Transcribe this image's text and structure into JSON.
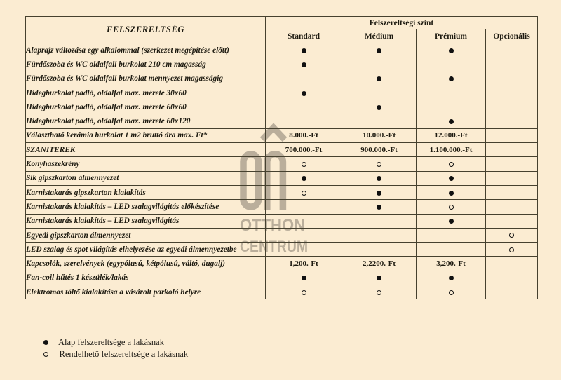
{
  "page": {
    "background_color": "#fbecd2",
    "border_color": "#46412f",
    "text_color": "#1d1a10",
    "watermark_color": "#5f594e"
  },
  "table": {
    "header": {
      "col1": "FELSZERELTSÉG",
      "group": "Felszereltségi szint",
      "levels": [
        "Standard",
        "Médium",
        "Prémium",
        "Opcionális"
      ]
    },
    "rows": [
      {
        "label": "Alaprajz változása egy alkalommal (szerkezet megépítése előtt)",
        "cells": [
          "filled",
          "filled",
          "filled",
          ""
        ]
      },
      {
        "label": "Fürdőszoba és WC oldalfali burkolat 210 cm magasság",
        "cells": [
          "filled",
          "",
          "",
          ""
        ]
      },
      {
        "label": "Fürdőszoba és WC oldalfali burkolat mennyezet magasságig",
        "cells": [
          "",
          "filled",
          "filled",
          ""
        ]
      },
      {
        "label": "Hidegburkolat padló, oldalfal max. mérete 30x60",
        "cells": [
          "filled",
          "",
          "",
          ""
        ]
      },
      {
        "label": "Hidegburkolat padló, oldalfal max. mérete 60x60",
        "cells": [
          "",
          "filled",
          "",
          ""
        ]
      },
      {
        "label": "Hidegburkolat padló, oldalfal max. mérete 60x120",
        "cells": [
          "",
          "",
          "filled",
          ""
        ]
      },
      {
        "label": "Választható kerámia burkolat 1 m2 bruttó ára max. Ft*",
        "cells": [
          "8.000.-Ft",
          "10.000.-Ft",
          "12.000.-Ft",
          ""
        ]
      },
      {
        "label": "SZANITEREK",
        "cells": [
          "700.000.-Ft",
          "900.000.-Ft",
          "1.100.000.-Ft",
          ""
        ]
      },
      {
        "label": "Konyhaszekrény",
        "cells": [
          "open",
          "open",
          "open",
          ""
        ]
      },
      {
        "label": "Sík gipszkarton álmennyezet",
        "cells": [
          "filled",
          "filled",
          "filled",
          ""
        ]
      },
      {
        "label": "Karnistakarás gipszkarton kialakítás",
        "cells": [
          "open",
          "filled",
          "filled",
          ""
        ]
      },
      {
        "label": "Karnistakarás kialakítás – LED szalagvilágítás előkészítése",
        "cells": [
          "",
          "filled",
          "open",
          ""
        ]
      },
      {
        "label": "Karnistakarás kialakítás – LED szalagvilágítás",
        "cells": [
          "",
          "",
          "filled",
          ""
        ]
      },
      {
        "label": "Egyedi gipszkarton álmennyezet",
        "cells": [
          "",
          "",
          "",
          "open"
        ]
      },
      {
        "label": "LED szalag és spot világítás elhelyezése az egyedi álmennyezetbe",
        "cells": [
          "",
          "",
          "",
          "open"
        ]
      },
      {
        "label": "Kapcsolók, szerelvények (egypólusú, kétpólusú, váltó, dugalj)",
        "cells": [
          "1,200.-Ft",
          "2,2200.-Ft",
          "3,200.-Ft",
          ""
        ]
      },
      {
        "label": "Fan-coil hűtés 1 készülék/lakás",
        "cells": [
          "filled",
          "filled",
          "filled",
          ""
        ]
      },
      {
        "label": "Elektromos töltő kialakítása a vásárolt parkoló helyre",
        "cells": [
          "open",
          "open",
          "open",
          ""
        ]
      }
    ]
  },
  "legend": [
    {
      "marker": "filled",
      "label": "Alap felszereltsége a lakásnak"
    },
    {
      "marker": "open",
      "label": "Rendelhető felszereltsége a lakásnak"
    }
  ],
  "watermark": {
    "line1": "OTTHON",
    "line2": "CENTRUM"
  }
}
